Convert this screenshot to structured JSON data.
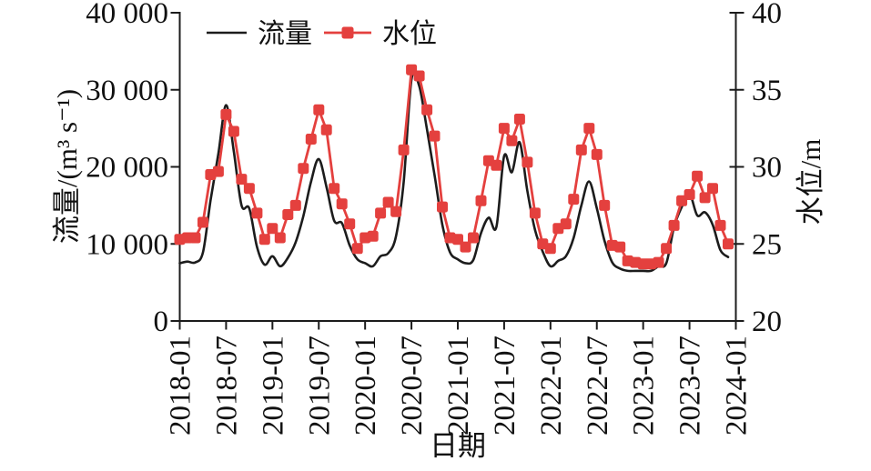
{
  "figure": {
    "background": "#ffffff"
  },
  "legend": {
    "items": [
      {
        "label": "流量",
        "type": "line",
        "color": "#1c1c1c"
      },
      {
        "label": "水位",
        "type": "line-square-marker",
        "color": "#e4403e"
      }
    ]
  },
  "chart_data": {
    "type": "line",
    "title": "",
    "xlabel": "日期",
    "ylabel_left": "流量/(m³ s⁻¹)",
    "ylabel_right": "水位/m",
    "x_start": "2018-01",
    "x_interval": "monthly",
    "x_tick_labels": [
      "2018-01",
      "2018-07",
      "2019-01",
      "2019-07",
      "2020-01",
      "2020-07",
      "2021-01",
      "2021-07",
      "2022-01",
      "2022-07",
      "2023-01",
      "2023-07",
      "2024-01"
    ],
    "left_axis": {
      "min": 0,
      "max": 40000,
      "tick_values": [
        0,
        10000,
        20000,
        30000,
        40000
      ],
      "tick_labels": [
        "0",
        "10 000",
        "20 000",
        "30 000",
        "40 000"
      ]
    },
    "right_axis": {
      "min": 20,
      "max": 40,
      "tick_values": [
        20,
        25,
        30,
        35,
        40
      ],
      "tick_labels": [
        "20",
        "25",
        "30",
        "35",
        "40"
      ]
    },
    "series": [
      {
        "name": "流量",
        "axis": "left",
        "color": "#1c1c1c",
        "marker": "none",
        "values": [
          7500,
          7700,
          7600,
          8900,
          15700,
          21700,
          28000,
          22000,
          15000,
          14600,
          9600,
          7300,
          8400,
          7100,
          8200,
          10200,
          13600,
          18100,
          21000,
          17400,
          13000,
          12700,
          9800,
          8000,
          7500,
          7100,
          8400,
          8800,
          11000,
          18100,
          31300,
          30500,
          24900,
          18900,
          12500,
          8900,
          8000,
          7500,
          7900,
          11400,
          13400,
          12200,
          21400,
          19300,
          23200,
          16900,
          11800,
          9000,
          7100,
          7800,
          8400,
          10800,
          15000,
          18100,
          14600,
          10400,
          7600,
          6800,
          6500,
          6500,
          6500,
          6500,
          7100,
          7500,
          12200,
          14800,
          16500,
          13700,
          14100,
          12500,
          9200,
          8300
        ]
      },
      {
        "name": "水位",
        "axis": "right",
        "color": "#e4403e",
        "marker": "square",
        "values": [
          25.3,
          25.4,
          25.4,
          26.4,
          29.5,
          29.7,
          33.4,
          32.3,
          29.2,
          28.6,
          27.0,
          25.3,
          26.0,
          25.4,
          26.9,
          27.5,
          29.9,
          31.8,
          33.7,
          32.4,
          28.6,
          27.6,
          26.3,
          24.7,
          25.4,
          25.5,
          27.0,
          27.7,
          27.1,
          31.1,
          36.3,
          35.9,
          33.7,
          32.0,
          27.4,
          25.4,
          25.3,
          24.8,
          25.4,
          27.8,
          30.4,
          30.1,
          32.5,
          31.7,
          33.1,
          30.3,
          27.0,
          25.0,
          24.7,
          26.0,
          26.3,
          27.9,
          31.1,
          32.5,
          30.8,
          27.5,
          24.9,
          24.8,
          23.9,
          23.8,
          23.7,
          23.7,
          23.8,
          24.7,
          26.2,
          27.8,
          28.2,
          29.4,
          28.0,
          28.6,
          26.2,
          25.0
        ]
      }
    ]
  }
}
